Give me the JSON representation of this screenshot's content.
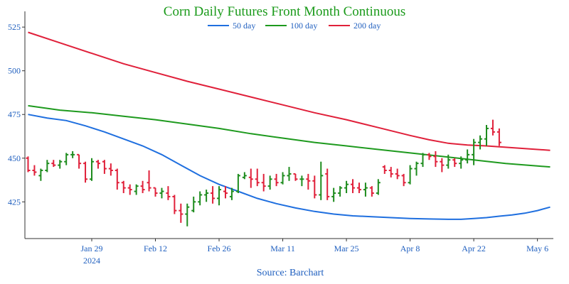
{
  "chart_data": {
    "type": "ohlc",
    "title": "Corn Daily Futures Front Month Continuous",
    "source": "Source: Barchart",
    "title_color": "#1a9a1a",
    "text_color": "#1f5fbf",
    "up_color": "#1e8c1e",
    "down_color": "#e0203a",
    "ylim": [
      404,
      534
    ],
    "y_ticks": [
      425,
      450,
      475,
      500,
      525
    ],
    "x_ticks": [
      {
        "label": "Jan 29",
        "sub": "2024",
        "day": 10
      },
      {
        "label": "Feb 12",
        "sub": "",
        "day": 20
      },
      {
        "label": "Feb 26",
        "sub": "",
        "day": 30
      },
      {
        "label": "Mar 11",
        "sub": "",
        "day": 40
      },
      {
        "label": "Mar 25",
        "sub": "",
        "day": 50
      },
      {
        "label": "Apr 8",
        "sub": "",
        "day": 60
      },
      {
        "label": "Apr 22",
        "sub": "",
        "day": 70
      },
      {
        "label": "May 6",
        "sub": "",
        "day": 80
      }
    ],
    "xlim": [
      -0.5,
      82.5
    ],
    "series": [
      {
        "name": "50 day",
        "color": "#1f6fdf",
        "points": [
          [
            0,
            475
          ],
          [
            3,
            473
          ],
          [
            6,
            471.5
          ],
          [
            9,
            468.5
          ],
          [
            12,
            465
          ],
          [
            15,
            461
          ],
          [
            18,
            457
          ],
          [
            21,
            452
          ],
          [
            24,
            446
          ],
          [
            27,
            440
          ],
          [
            30,
            435
          ],
          [
            33,
            431
          ],
          [
            36,
            427
          ],
          [
            39,
            424
          ],
          [
            42,
            421.5
          ],
          [
            45,
            419.5
          ],
          [
            48,
            418
          ],
          [
            51,
            417
          ],
          [
            54,
            416.5
          ],
          [
            57,
            416
          ],
          [
            60,
            415.5
          ],
          [
            63,
            415.2
          ],
          [
            66,
            415
          ],
          [
            68,
            415
          ],
          [
            70,
            415.5
          ],
          [
            72,
            416
          ],
          [
            74,
            416.8
          ],
          [
            76,
            417.5
          ],
          [
            78,
            418.5
          ],
          [
            80,
            420
          ],
          [
            82,
            422
          ]
        ]
      },
      {
        "name": "100 day",
        "color": "#1e9a1e",
        "points": [
          [
            0,
            480
          ],
          [
            5,
            477.5
          ],
          [
            10,
            476
          ],
          [
            15,
            474
          ],
          [
            20,
            472
          ],
          [
            25,
            469.5
          ],
          [
            30,
            467
          ],
          [
            35,
            464
          ],
          [
            40,
            461.5
          ],
          [
            45,
            459
          ],
          [
            50,
            457
          ],
          [
            55,
            455
          ],
          [
            60,
            453
          ],
          [
            65,
            451
          ],
          [
            70,
            449
          ],
          [
            75,
            447
          ],
          [
            80,
            445.5
          ],
          [
            82,
            445
          ]
        ]
      },
      {
        "name": "200 day",
        "color": "#e0203a",
        "points": [
          [
            0,
            522
          ],
          [
            5,
            516
          ],
          [
            10,
            510
          ],
          [
            15,
            504
          ],
          [
            20,
            499
          ],
          [
            25,
            494
          ],
          [
            30,
            489.5
          ],
          [
            35,
            485
          ],
          [
            40,
            480.5
          ],
          [
            45,
            476
          ],
          [
            50,
            472
          ],
          [
            55,
            467.5
          ],
          [
            60,
            463
          ],
          [
            63,
            460.5
          ],
          [
            66,
            458.5
          ],
          [
            69,
            457.5
          ],
          [
            72,
            457
          ],
          [
            76,
            456
          ],
          [
            80,
            455
          ],
          [
            82,
            454.5
          ]
        ]
      }
    ],
    "bars": [
      [
        0,
        450,
        451,
        442,
        443
      ],
      [
        1,
        443,
        446,
        440,
        442
      ],
      [
        2,
        440,
        444,
        437,
        443
      ],
      [
        3,
        443,
        449,
        442,
        447
      ],
      [
        4,
        447,
        449,
        445,
        446
      ],
      [
        5,
        446,
        449,
        444,
        448
      ],
      [
        6,
        448,
        453,
        446,
        452
      ],
      [
        7,
        452,
        454,
        450,
        452
      ],
      [
        8,
        452,
        452,
        444,
        447
      ],
      [
        9,
        447,
        448,
        436,
        438
      ],
      [
        10,
        438,
        450,
        437,
        448
      ],
      [
        11,
        448,
        449,
        444,
        447
      ],
      [
        12,
        448,
        449,
        441,
        444
      ],
      [
        13,
        444,
        447,
        440,
        443
      ],
      [
        14,
        443,
        444,
        432,
        436
      ],
      [
        15,
        436,
        437,
        430,
        433
      ],
      [
        16,
        433,
        435,
        429,
        432
      ],
      [
        17,
        431,
        435,
        429,
        434
      ],
      [
        18,
        434,
        437,
        430,
        432
      ],
      [
        19,
        436,
        443,
        431,
        433
      ],
      [
        20,
        433,
        433,
        428,
        430
      ],
      [
        21,
        430,
        433,
        427,
        431
      ],
      [
        22,
        430,
        434,
        426,
        428
      ],
      [
        23,
        428,
        429,
        418,
        420
      ],
      [
        24,
        420,
        424,
        413,
        418
      ],
      [
        25,
        418,
        424,
        411,
        422
      ],
      [
        26,
        420,
        428,
        419,
        425
      ],
      [
        27,
        425,
        431,
        423,
        429
      ],
      [
        28,
        429,
        432,
        425,
        430
      ],
      [
        29,
        430,
        434,
        424,
        427
      ],
      [
        30,
        427,
        434,
        423,
        432
      ],
      [
        31,
        431,
        434,
        427,
        430
      ],
      [
        32,
        428,
        433,
        426,
        431
      ],
      [
        33,
        431,
        441,
        430,
        440
      ],
      [
        34,
        439,
        442,
        438,
        440
      ],
      [
        35,
        439,
        444,
        433,
        438
      ],
      [
        36,
        438,
        444,
        434,
        436
      ],
      [
        37,
        436,
        441,
        431,
        434
      ],
      [
        38,
        434,
        440,
        432,
        438
      ],
      [
        39,
        438,
        441,
        434,
        436
      ],
      [
        40,
        436,
        442,
        435,
        440
      ],
      [
        41,
        440,
        445,
        437,
        441
      ],
      [
        42,
        441,
        441,
        437,
        438
      ],
      [
        43,
        438,
        440,
        434,
        438
      ],
      [
        44,
        438,
        441,
        432,
        437
      ],
      [
        45,
        437,
        440,
        427,
        429
      ],
      [
        46,
        429,
        448,
        426,
        440
      ],
      [
        47,
        441,
        444,
        426,
        428
      ],
      [
        48,
        428,
        433,
        425,
        430
      ],
      [
        49,
        430,
        434,
        428,
        433
      ],
      [
        50,
        433,
        437,
        430,
        435
      ],
      [
        51,
        435,
        438,
        430,
        433
      ],
      [
        52,
        433,
        436,
        430,
        432
      ],
      [
        53,
        432,
        436,
        428,
        433
      ],
      [
        54,
        433,
        434,
        428,
        430
      ],
      [
        55,
        430,
        438,
        429,
        436
      ],
      [
        56,
        445,
        446,
        441,
        443
      ],
      [
        57,
        443,
        445,
        439,
        441
      ],
      [
        58,
        441,
        444,
        438,
        440
      ],
      [
        59,
        440,
        441,
        434,
        436
      ],
      [
        60,
        436,
        446,
        435,
        444
      ],
      [
        61,
        444,
        448,
        440,
        447
      ],
      [
        62,
        447,
        453,
        445,
        452
      ],
      [
        63,
        452,
        453,
        449,
        451
      ],
      [
        64,
        451,
        454,
        445,
        448
      ],
      [
        65,
        448,
        450,
        442,
        446
      ],
      [
        66,
        446,
        452,
        444,
        449
      ],
      [
        67,
        449,
        450,
        445,
        447
      ],
      [
        68,
        447,
        451,
        444,
        449
      ],
      [
        69,
        449,
        455,
        447,
        452
      ],
      [
        70,
        452,
        461,
        446,
        459
      ],
      [
        71,
        459,
        463,
        455,
        461
      ],
      [
        72,
        461,
        469,
        457,
        467
      ],
      [
        73,
        467,
        472,
        463,
        465
      ],
      [
        74,
        465,
        467,
        457,
        459
      ]
    ]
  }
}
